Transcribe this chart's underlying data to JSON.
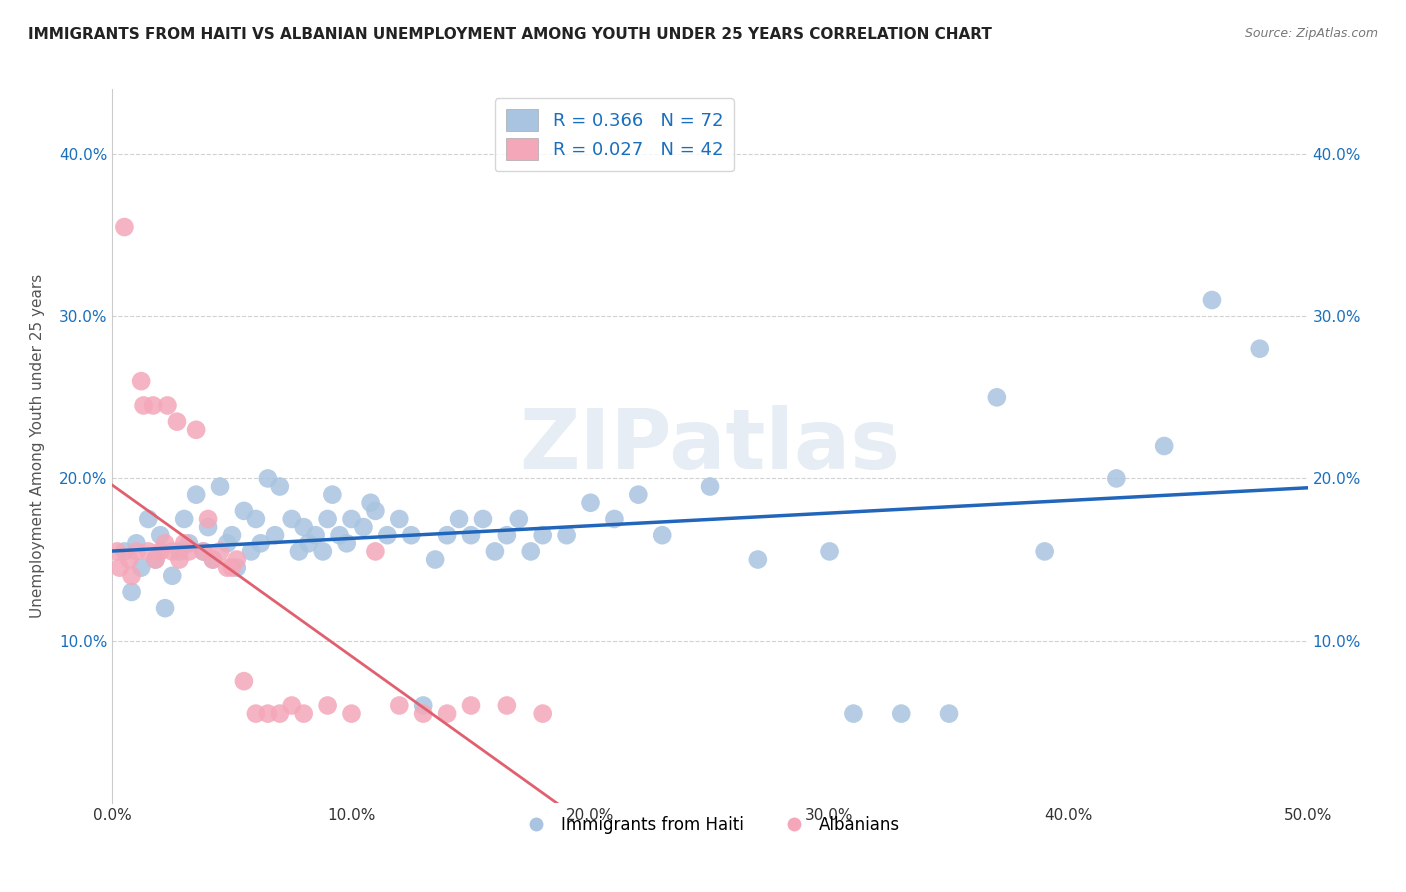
{
  "title": "IMMIGRANTS FROM HAITI VS ALBANIAN UNEMPLOYMENT AMONG YOUTH UNDER 25 YEARS CORRELATION CHART",
  "source": "Source: ZipAtlas.com",
  "ylabel": "Unemployment Among Youth under 25 years",
  "xlim": [
    0.0,
    0.5
  ],
  "ylim": [
    0.0,
    0.44
  ],
  "xticks": [
    0.0,
    0.1,
    0.2,
    0.3,
    0.4,
    0.5
  ],
  "xtick_labels": [
    "0.0%",
    "10.0%",
    "20.0%",
    "30.0%",
    "40.0%",
    "50.0%"
  ],
  "yticks": [
    0.1,
    0.2,
    0.3,
    0.4
  ],
  "ytick_labels": [
    "10.0%",
    "20.0%",
    "30.0%",
    "40.0%"
  ],
  "haiti_R": 0.366,
  "haiti_N": 72,
  "albanian_R": 0.027,
  "albanian_N": 42,
  "haiti_color": "#a8c4e0",
  "albanian_color": "#f4a7b9",
  "haiti_line_color": "#2266bb",
  "albanian_line_color": "#e06070",
  "watermark": "ZIPatlas",
  "haiti_points_x": [
    0.005,
    0.008,
    0.01,
    0.012,
    0.015,
    0.018,
    0.02,
    0.022,
    0.025,
    0.028,
    0.03,
    0.032,
    0.035,
    0.038,
    0.04,
    0.042,
    0.045,
    0.048,
    0.05,
    0.052,
    0.055,
    0.058,
    0.06,
    0.062,
    0.065,
    0.068,
    0.07,
    0.075,
    0.078,
    0.08,
    0.082,
    0.085,
    0.088,
    0.09,
    0.092,
    0.095,
    0.098,
    0.1,
    0.105,
    0.108,
    0.11,
    0.115,
    0.12,
    0.125,
    0.13,
    0.135,
    0.14,
    0.145,
    0.15,
    0.155,
    0.16,
    0.165,
    0.17,
    0.175,
    0.18,
    0.19,
    0.2,
    0.21,
    0.22,
    0.23,
    0.25,
    0.27,
    0.3,
    0.31,
    0.33,
    0.35,
    0.37,
    0.39,
    0.42,
    0.44,
    0.46,
    0.48
  ],
  "haiti_points_y": [
    0.155,
    0.13,
    0.16,
    0.145,
    0.175,
    0.15,
    0.165,
    0.12,
    0.14,
    0.155,
    0.175,
    0.16,
    0.19,
    0.155,
    0.17,
    0.15,
    0.195,
    0.16,
    0.165,
    0.145,
    0.18,
    0.155,
    0.175,
    0.16,
    0.2,
    0.165,
    0.195,
    0.175,
    0.155,
    0.17,
    0.16,
    0.165,
    0.155,
    0.175,
    0.19,
    0.165,
    0.16,
    0.175,
    0.17,
    0.185,
    0.18,
    0.165,
    0.175,
    0.165,
    0.06,
    0.15,
    0.165,
    0.175,
    0.165,
    0.175,
    0.155,
    0.165,
    0.175,
    0.155,
    0.165,
    0.165,
    0.185,
    0.175,
    0.19,
    0.165,
    0.195,
    0.15,
    0.155,
    0.055,
    0.055,
    0.055,
    0.25,
    0.155,
    0.2,
    0.22,
    0.31,
    0.28
  ],
  "albanian_points_x": [
    0.002,
    0.003,
    0.005,
    0.007,
    0.008,
    0.01,
    0.012,
    0.013,
    0.015,
    0.017,
    0.018,
    0.02,
    0.022,
    0.023,
    0.025,
    0.027,
    0.028,
    0.03,
    0.032,
    0.035,
    0.038,
    0.04,
    0.042,
    0.045,
    0.048,
    0.05,
    0.052,
    0.055,
    0.06,
    0.065,
    0.07,
    0.075,
    0.08,
    0.09,
    0.1,
    0.11,
    0.12,
    0.13,
    0.14,
    0.15,
    0.165,
    0.18
  ],
  "albanian_points_y": [
    0.155,
    0.145,
    0.355,
    0.15,
    0.14,
    0.155,
    0.26,
    0.245,
    0.155,
    0.245,
    0.15,
    0.155,
    0.16,
    0.245,
    0.155,
    0.235,
    0.15,
    0.16,
    0.155,
    0.23,
    0.155,
    0.175,
    0.15,
    0.155,
    0.145,
    0.145,
    0.15,
    0.075,
    0.055,
    0.055,
    0.055,
    0.06,
    0.055,
    0.06,
    0.055,
    0.155,
    0.06,
    0.055,
    0.055,
    0.06,
    0.06,
    0.055
  ]
}
